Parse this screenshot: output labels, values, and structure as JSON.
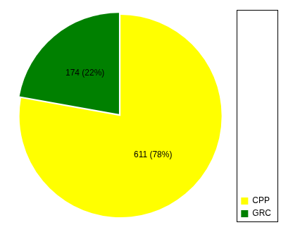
{
  "chart_data": {
    "type": "pie",
    "categories": [
      "CPP",
      "GRC"
    ],
    "values": [
      611,
      174
    ],
    "value_labels": [
      "611 (78%)",
      "174 (22%)"
    ],
    "colors": [
      "#ffff00",
      "#008000"
    ],
    "legend": "bottom-right",
    "data_labels": true
  }
}
